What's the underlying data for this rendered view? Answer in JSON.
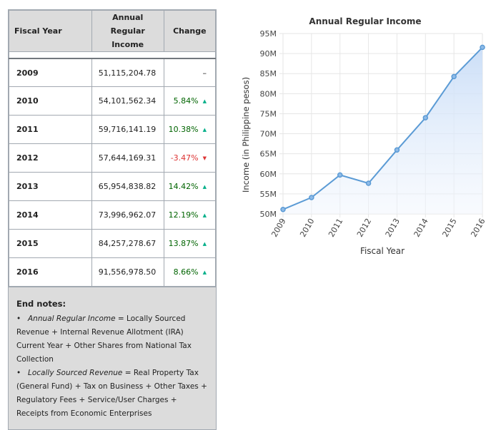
{
  "table": {
    "headers": {
      "fiscal_year": "Fiscal Year",
      "income_line1": "Annual Regular",
      "income_line2": "Income",
      "change": "Change"
    },
    "rows": [
      {
        "year": "2009",
        "income": "51,115,204.78",
        "change": "–",
        "dir": "none"
      },
      {
        "year": "2010",
        "income": "54,101,562.34",
        "change": "5.84%",
        "dir": "up"
      },
      {
        "year": "2011",
        "income": "59,716,141.19",
        "change": "10.38%",
        "dir": "up"
      },
      {
        "year": "2012",
        "income": "57,644,169.31",
        "change": "-3.47%",
        "dir": "down"
      },
      {
        "year": "2013",
        "income": "65,954,838.82",
        "change": "14.42%",
        "dir": "up"
      },
      {
        "year": "2014",
        "income": "73,996,962.07",
        "change": "12.19%",
        "dir": "up"
      },
      {
        "year": "2015",
        "income": "84,257,278.67",
        "change": "13.87%",
        "dir": "up"
      },
      {
        "year": "2016",
        "income": "91,556,978.50",
        "change": "8.66%",
        "dir": "up"
      }
    ]
  },
  "notes": {
    "heading": "End notes:",
    "items": [
      {
        "term": "Annual Regular Income",
        "text": " = Locally Sourced Revenue + Internal Revenue Allotment (IRA) Current Year + Other Shares from National Tax Collection"
      },
      {
        "term": "Locally Sourced Revenue",
        "text": " = Real Property Tax (General Fund) + Tax on Business + Other Taxes + Regulatory Fees + Service/User Charges + Receipts from Economic Enterprises"
      }
    ]
  },
  "colors": {
    "up": "#006400",
    "down": "#dd3333",
    "line": "#5b9bd5",
    "header_bg": "#dcdcdc"
  },
  "chart_data": {
    "type": "area",
    "title": "Annual Regular Income",
    "xlabel": "Fiscal Year",
    "ylabel": "Income (in Philippine pesos)",
    "x": [
      "2009",
      "2010",
      "2011",
      "2012",
      "2013",
      "2014",
      "2015",
      "2016"
    ],
    "values": [
      51.115,
      54.102,
      59.716,
      57.644,
      65.955,
      73.997,
      84.257,
      91.557
    ],
    "ylim": [
      50,
      95
    ],
    "yticks": [
      50,
      55,
      60,
      65,
      70,
      75,
      80,
      85,
      90,
      95
    ],
    "ytick_labels": [
      "50M",
      "55M",
      "60M",
      "65M",
      "70M",
      "75M",
      "80M",
      "85M",
      "90M",
      "95M"
    ],
    "grid": true,
    "legend": "none"
  }
}
